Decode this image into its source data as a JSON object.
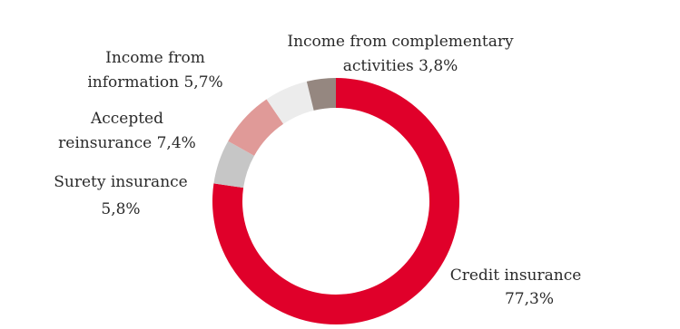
{
  "chart_data": {
    "type": "pie",
    "style": "donut",
    "title": "",
    "slices": [
      {
        "label": "Credit insurance",
        "value_text": "77,3%",
        "value": 77.3,
        "color": "#e0002a"
      },
      {
        "label": "Surety insurance",
        "value_text": "5,8%",
        "value": 5.8,
        "color": "#c6c6c6"
      },
      {
        "label": "Accepted reinsurance",
        "value_text": "7,4%",
        "value": 7.4,
        "color": "#e09a98"
      },
      {
        "label": "Income from information",
        "value_text": "5,7%",
        "value": 5.7,
        "color": "#ececec"
      },
      {
        "label": "Income from complementary activities",
        "value_text": "3,8%",
        "value": 3.8,
        "color": "#958780"
      }
    ],
    "labels": {
      "credit_l1": "Credit insurance",
      "credit_l2": "77,3%",
      "surety_l1": "Surety insurance",
      "surety_l2": "5,8%",
      "accepted_l1": "Accepted",
      "accepted_l2": "reinsurance  7,4%",
      "info_l1": "Income from",
      "info_l2": "information  5,7%",
      "compl_l1": "Income from complementary",
      "compl_l2": "activities  3,8%"
    }
  }
}
